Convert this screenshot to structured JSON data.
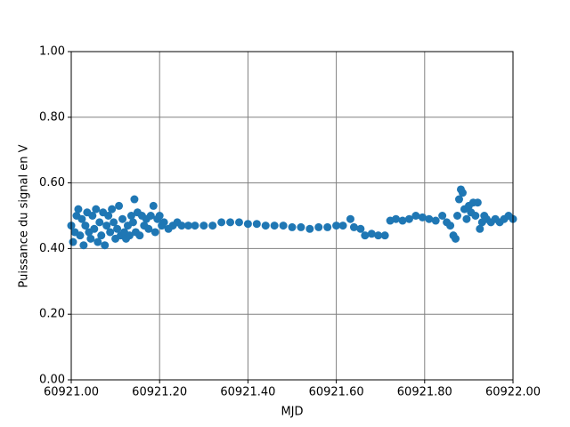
{
  "chart_data": {
    "type": "scatter",
    "xlabel": "MJD",
    "ylabel": "Puissance du signal en V",
    "color": "#1f77b4",
    "grid": true,
    "grid_color": "#808080",
    "xlim": [
      60921.0,
      60922.0
    ],
    "xticks": [
      {
        "value": 60921.0,
        "label": "60921.00"
      },
      {
        "value": 60921.2,
        "label": "60921.20"
      },
      {
        "value": 60921.4,
        "label": "60921.40"
      },
      {
        "value": 60921.6,
        "label": "60921.60"
      },
      {
        "value": 60921.8,
        "label": "60921.80"
      },
      {
        "value": 60922.0,
        "label": "60922.00"
      }
    ],
    "ylim": [
      0,
      1
    ],
    "yticks": [
      {
        "value": 0,
        "label": "0.00"
      },
      {
        "value": 0.2,
        "label": "0.20"
      },
      {
        "value": 0.4,
        "label": "0.40"
      },
      {
        "value": 0.6,
        "label": "0.60"
      },
      {
        "value": 0.8,
        "label": "0.80"
      },
      {
        "value": 1,
        "label": "1.00"
      }
    ],
    "x": [
      60921.0,
      60921.004,
      60921.008,
      60921.012,
      60921.016,
      60921.02,
      60921.024,
      60921.028,
      60921.032,
      60921.036,
      60921.04,
      60921.044,
      60921.048,
      60921.052,
      60921.056,
      60921.06,
      60921.064,
      60921.068,
      60921.072,
      60921.076,
      60921.08,
      60921.084,
      60921.088,
      60921.092,
      60921.096,
      60921.1,
      60921.104,
      60921.108,
      60921.112,
      60921.116,
      60921.12,
      60921.124,
      60921.128,
      60921.132,
      60921.136,
      60921.14,
      60921.143,
      60921.146,
      60921.15,
      60921.155,
      60921.16,
      60921.165,
      60921.17,
      60921.175,
      60921.18,
      60921.186,
      60921.19,
      60921.195,
      60921.2,
      60921.205,
      60921.21,
      60921.22,
      60921.23,
      60921.24,
      60921.25,
      60921.265,
      60921.28,
      60921.3,
      60921.32,
      60921.34,
      60921.36,
      60921.38,
      60921.4,
      60921.42,
      60921.44,
      60921.46,
      60921.48,
      60921.5,
      60921.52,
      60921.54,
      60921.56,
      60921.58,
      60921.6,
      60921.615,
      60921.632,
      60921.64,
      60921.655,
      60921.665,
      60921.68,
      60921.695,
      60921.71,
      60921.722,
      60921.735,
      60921.75,
      60921.765,
      60921.78,
      60921.795,
      60921.81,
      60921.825,
      60921.84,
      60921.85,
      60921.858,
      60921.865,
      60921.87,
      60921.874,
      60921.878,
      60921.882,
      60921.886,
      60921.89,
      60921.895,
      60921.9,
      60921.905,
      60921.91,
      60921.915,
      60921.92,
      60921.925,
      60921.93,
      60921.935,
      60921.94,
      60921.95,
      60921.96,
      60921.97,
      60921.98,
      60921.99,
      60922.0
    ],
    "y": [
      0.47,
      0.42,
      0.45,
      0.5,
      0.52,
      0.44,
      0.49,
      0.41,
      0.47,
      0.51,
      0.45,
      0.43,
      0.5,
      0.46,
      0.52,
      0.42,
      0.48,
      0.44,
      0.51,
      0.41,
      0.47,
      0.5,
      0.45,
      0.52,
      0.48,
      0.43,
      0.46,
      0.53,
      0.44,
      0.49,
      0.45,
      0.43,
      0.47,
      0.44,
      0.5,
      0.48,
      0.55,
      0.45,
      0.51,
      0.44,
      0.5,
      0.47,
      0.49,
      0.46,
      0.5,
      0.53,
      0.45,
      0.49,
      0.5,
      0.47,
      0.48,
      0.46,
      0.47,
      0.48,
      0.47,
      0.47,
      0.47,
      0.47,
      0.47,
      0.48,
      0.48,
      0.48,
      0.475,
      0.475,
      0.47,
      0.47,
      0.47,
      0.465,
      0.465,
      0.46,
      0.465,
      0.465,
      0.47,
      0.47,
      0.49,
      0.465,
      0.46,
      0.44,
      0.445,
      0.44,
      0.44,
      0.485,
      0.49,
      0.485,
      0.49,
      0.5,
      0.495,
      0.49,
      0.485,
      0.5,
      0.48,
      0.47,
      0.44,
      0.43,
      0.5,
      0.55,
      0.58,
      0.57,
      0.52,
      0.49,
      0.53,
      0.51,
      0.54,
      0.5,
      0.54,
      0.46,
      0.48,
      0.5,
      0.49,
      0.48,
      0.49,
      0.48,
      0.49,
      0.5,
      0.49
    ]
  }
}
